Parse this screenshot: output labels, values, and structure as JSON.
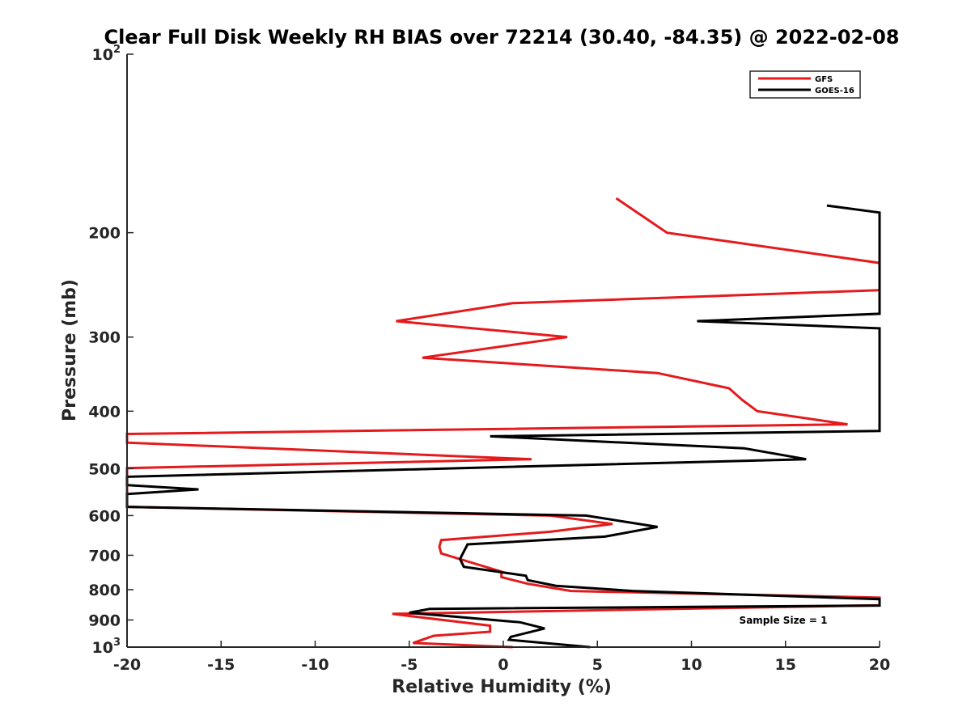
{
  "chart_data": {
    "type": "line",
    "title": "Clear Full Disk Weekly RH BIAS over 72214 (30.40, -84.35) @ 2022-02-08",
    "xlabel": "Relative Humidity (%)",
    "ylabel": "Pressure (mb)",
    "xlim": [
      -20,
      20
    ],
    "ylim": [
      100,
      1000
    ],
    "y_scale": "log",
    "y_reversed": true,
    "grid": false,
    "x_ticks": [
      -20,
      -15,
      -10,
      -5,
      0,
      5,
      10,
      15,
      20
    ],
    "x_tick_labels": [
      "-20",
      "-15",
      "-10",
      "-5",
      "0",
      "5",
      "10",
      "15",
      "20"
    ],
    "y_ticks": [
      100,
      200,
      300,
      400,
      500,
      600,
      700,
      800,
      900,
      1000
    ],
    "y_tick_labels": [
      {
        "base": "10",
        "exp": "2"
      },
      {
        "base": "200",
        "exp": ""
      },
      {
        "base": "300",
        "exp": ""
      },
      {
        "base": "400",
        "exp": ""
      },
      {
        "base": "500",
        "exp": ""
      },
      {
        "base": "600",
        "exp": ""
      },
      {
        "base": "700",
        "exp": ""
      },
      {
        "base": "800",
        "exp": ""
      },
      {
        "base": "900",
        "exp": ""
      },
      {
        "base": "10",
        "exp": "3"
      }
    ],
    "legend_position": "top-right",
    "annotation": "Sample Size = 1",
    "series": [
      {
        "name": "GFS",
        "color": "#e41a1c",
        "points": [
          [
            6,
            175
          ],
          [
            8.7,
            200
          ],
          [
            20,
            225
          ],
          [
            20,
            250
          ],
          [
            0.5,
            263
          ],
          [
            -5.7,
            282
          ],
          [
            3.4,
            300
          ],
          [
            -4.3,
            325
          ],
          [
            8.2,
            345
          ],
          [
            12,
            366
          ],
          [
            12.7,
            383
          ],
          [
            13.5,
            400
          ],
          [
            18.3,
            421
          ],
          [
            -20,
            437
          ],
          [
            -20,
            452
          ],
          [
            1.5,
            482
          ],
          [
            -20,
            499
          ],
          [
            -20,
            580
          ],
          [
            2.5,
            600
          ],
          [
            5.8,
            620
          ],
          [
            2.5,
            639
          ],
          [
            -3.3,
            660
          ],
          [
            -3.4,
            677
          ],
          [
            -3.3,
            695
          ],
          [
            -0.1,
            746
          ],
          [
            -0.1,
            762
          ],
          [
            1.3,
            782
          ],
          [
            3.6,
            804
          ],
          [
            20,
            825
          ],
          [
            20,
            850
          ],
          [
            -5.9,
            879
          ],
          [
            -0.7,
            920
          ],
          [
            -0.7,
            942
          ],
          [
            -3.7,
            957
          ],
          [
            -4.8,
            984
          ],
          [
            0.5,
            1000
          ]
        ]
      },
      {
        "name": "GOES-16",
        "color": "#000000",
        "points": [
          [
            17.2,
            180
          ],
          [
            20,
            185
          ],
          [
            20,
            274
          ],
          [
            10.3,
            282
          ],
          [
            20,
            290
          ],
          [
            20,
            432
          ],
          [
            -0.7,
            441
          ],
          [
            12.8,
            462
          ],
          [
            16.1,
            482
          ],
          [
            -20,
            516
          ],
          [
            -20,
            533
          ],
          [
            -16.2,
            542
          ],
          [
            -20,
            552
          ],
          [
            -20,
            580
          ],
          [
            4.4,
            600
          ],
          [
            8.2,
            627
          ],
          [
            5.4,
            651
          ],
          [
            -1.9,
            671
          ],
          [
            -2.3,
            710
          ],
          [
            -2.1,
            732
          ],
          [
            1.2,
            758
          ],
          [
            1.3,
            771
          ],
          [
            2.8,
            788
          ],
          [
            6.9,
            804
          ],
          [
            20,
            830
          ],
          [
            20,
            851
          ],
          [
            -3.9,
            862
          ],
          [
            -5,
            875
          ],
          [
            0.9,
            908
          ],
          [
            2.2,
            930
          ],
          [
            0.4,
            961
          ],
          [
            0.3,
            972
          ],
          [
            4.6,
            1000
          ]
        ]
      }
    ]
  }
}
